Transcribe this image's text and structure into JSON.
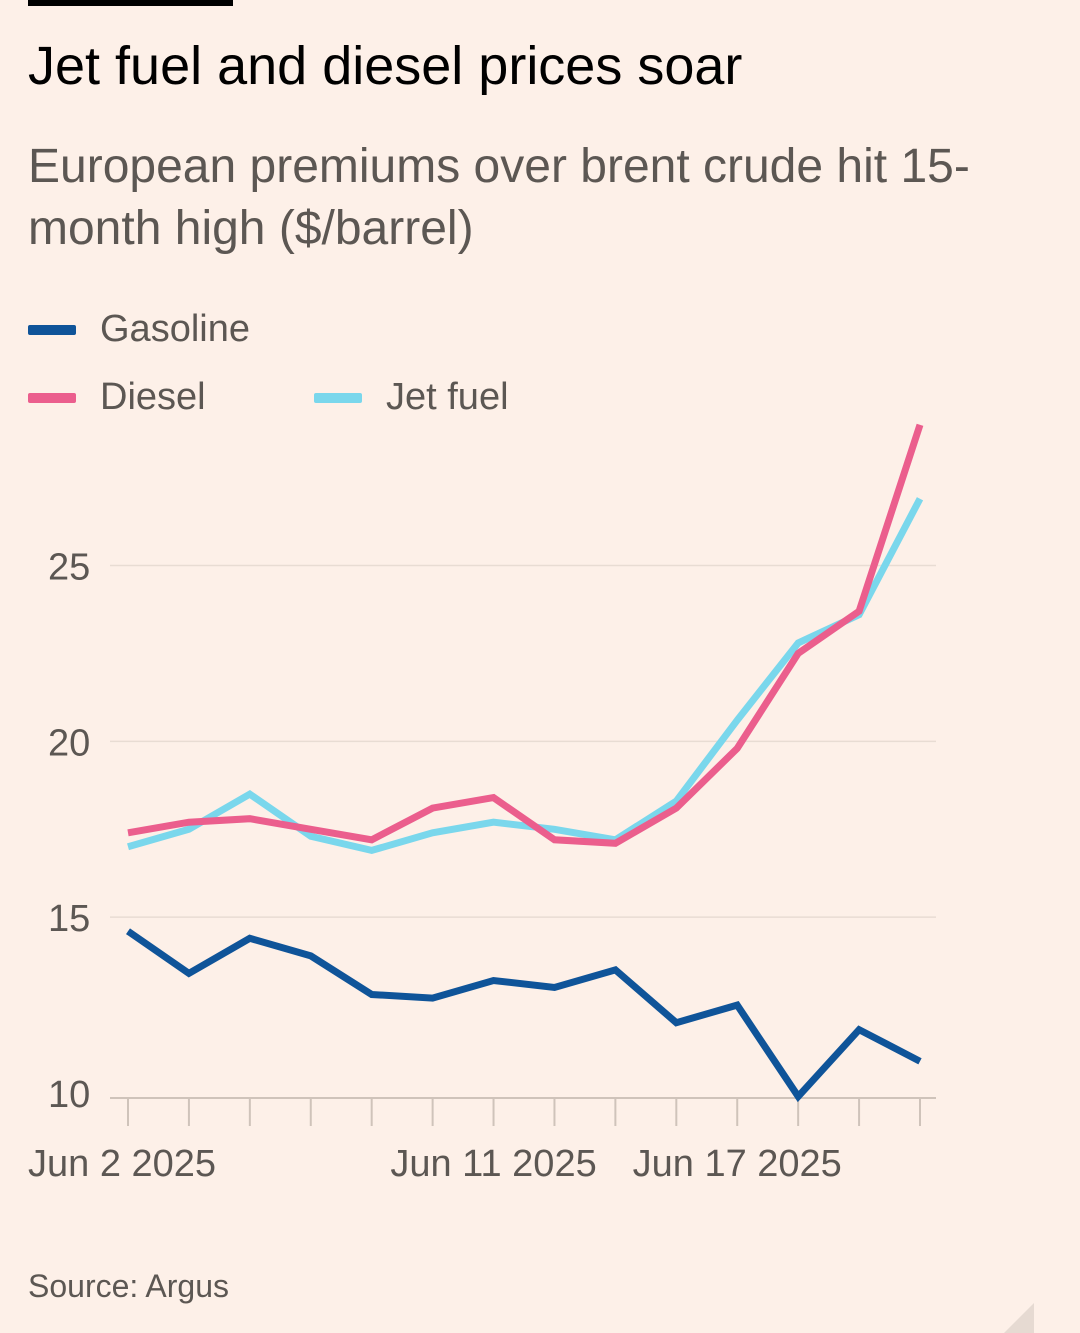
{
  "header": {
    "title": "Jet fuel and diesel prices soar",
    "subtitle": "European premiums over brent crude hit 15-month high ($/barrel)"
  },
  "source": "Source: Argus",
  "chart_data": {
    "type": "line",
    "title": "Jet fuel and diesel prices soar",
    "subtitle": "European premiums over brent crude hit 15-month high ($/barrel)",
    "xlabel": "",
    "ylabel": "$/barrel",
    "ylim": [
      10,
      28
    ],
    "yticks": [
      10,
      15,
      20,
      25
    ],
    "x_count": 14,
    "x_tick_labels": [
      {
        "index": 0,
        "label": "Jun 2 2025"
      },
      {
        "index": 6,
        "label": "Jun 11 2025"
      },
      {
        "index": 10,
        "label": "Jun 17 2025"
      }
    ],
    "grid": true,
    "legend": "top-left",
    "series": [
      {
        "name": "Gasoline",
        "color": "#0f5499",
        "values": [
          14.6,
          13.4,
          14.4,
          13.9,
          12.8,
          12.7,
          13.2,
          13.0,
          13.5,
          12.0,
          12.5,
          9.9,
          11.8,
          10.9
        ]
      },
      {
        "name": "Diesel",
        "color": "#eb5e8d",
        "values": [
          17.4,
          17.7,
          17.8,
          17.5,
          17.2,
          18.1,
          18.4,
          17.2,
          17.1,
          18.1,
          19.8,
          22.5,
          23.7,
          29.0
        ]
      },
      {
        "name": "Jet fuel",
        "color": "#7ad7ec",
        "values": [
          17.0,
          17.5,
          18.5,
          17.3,
          16.9,
          17.4,
          17.7,
          17.5,
          17.2,
          18.3,
          20.6,
          22.8,
          23.6,
          26.9
        ]
      }
    ]
  }
}
